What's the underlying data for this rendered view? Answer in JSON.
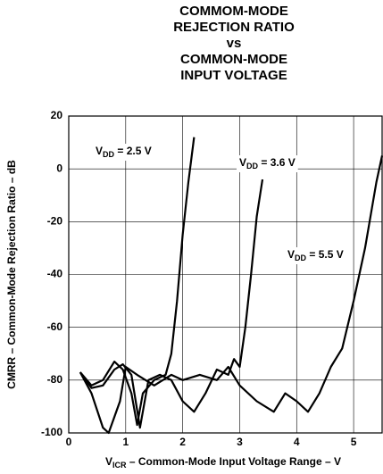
{
  "chart_data": {
    "type": "line",
    "title": [
      "COMMOM-MODE",
      "REJECTION RATIO",
      "vs",
      "COMMON-MODE",
      "INPUT VOLTAGE"
    ],
    "x_label": [
      "V",
      "ICR",
      " – Common-Mode Input Voltage Range – V"
    ],
    "y_label": "CMRR – Common-Mode Rejection Ratio – dB",
    "xlim": [
      0,
      5.5
    ],
    "xticks": [
      0,
      1,
      2,
      3,
      4,
      5
    ],
    "ylim": [
      -100,
      20
    ],
    "yticks": [
      -100,
      -80,
      -60,
      -40,
      -20,
      0,
      20
    ],
    "grid": true,
    "series": [
      {
        "label": [
          "V",
          "DD",
          " = 2.5 V"
        ],
        "color": "#000000",
        "x": [
          0.2,
          0.4,
          0.6,
          0.8,
          0.95,
          1.1,
          1.2,
          1.3,
          1.5,
          1.7,
          1.8,
          1.9,
          2.0,
          2.1,
          2.2
        ],
        "values": [
          -77,
          -82,
          -80,
          -73,
          -76,
          -85,
          -97,
          -85,
          -80,
          -78,
          -70,
          -50,
          -25,
          -5,
          12
        ]
      },
      {
        "label": [
          "V",
          "DD",
          " = 3.6 V"
        ],
        "color": "#000000",
        "x": [
          0.2,
          0.4,
          0.6,
          0.8,
          0.95,
          1.1,
          1.25,
          1.4,
          1.6,
          1.8,
          2.0,
          2.2,
          2.4,
          2.6,
          2.8,
          2.9,
          3.0,
          3.1,
          3.2,
          3.3,
          3.4
        ],
        "values": [
          -77,
          -83,
          -82,
          -76,
          -74,
          -78,
          -98,
          -80,
          -78,
          -80,
          -88,
          -92,
          -85,
          -76,
          -78,
          -72,
          -75,
          -60,
          -40,
          -18,
          -4
        ]
      },
      {
        "label": [
          "V",
          "DD",
          " = 5.5 V"
        ],
        "color": "#000000",
        "x": [
          0.2,
          0.4,
          0.6,
          0.7,
          0.9,
          1.0,
          1.2,
          1.5,
          1.8,
          2.0,
          2.3,
          2.6,
          2.8,
          3.0,
          3.3,
          3.6,
          3.8,
          4.0,
          4.2,
          4.4,
          4.6,
          4.8,
          5.0,
          5.2,
          5.4,
          5.5
        ],
        "values": [
          -77,
          -85,
          -98,
          -100,
          -88,
          -75,
          -78,
          -82,
          -78,
          -80,
          -78,
          -80,
          -75,
          -82,
          -88,
          -92,
          -85,
          -88,
          -92,
          -85,
          -75,
          -68,
          -50,
          -30,
          -5,
          5
        ]
      }
    ]
  }
}
